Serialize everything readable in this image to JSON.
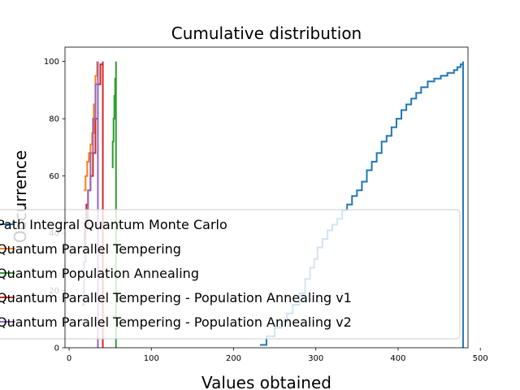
{
  "chart_data": {
    "type": "line",
    "drawstyle": "steps-post",
    "title": "Cumulative distribution",
    "xlabel": "Values obtained",
    "ylabel": "Occurrence",
    "xlim": [
      -5,
      485
    ],
    "ylim": [
      0,
      105
    ],
    "xticks": [
      0,
      100,
      200,
      300,
      400,
      500
    ],
    "yticks": [
      0,
      20,
      40,
      60,
      80,
      100
    ],
    "grid": false,
    "legend_position": "lower-left",
    "series": [
      {
        "name": "Path Integral Quantum Monte Carlo",
        "color": "#1f77b4",
        "x": [
          232,
          240,
          250,
          258,
          265,
          272,
          280,
          287,
          293,
          298,
          302,
          308,
          314,
          320,
          326,
          332,
          338,
          344,
          350,
          356,
          362,
          368,
          374,
          380,
          386,
          392,
          398,
          404,
          410,
          416,
          422,
          428,
          436,
          444,
          452,
          460,
          468,
          472,
          476,
          479,
          479
        ],
        "y": [
          1,
          4,
          7,
          9,
          12,
          15,
          19,
          24,
          28,
          31,
          35,
          38,
          41,
          43,
          45,
          48,
          50,
          53,
          55,
          58,
          62,
          65,
          68,
          72,
          74,
          77,
          80,
          83,
          85,
          87,
          89,
          91,
          93,
          94,
          95,
          96,
          97,
          98,
          99,
          100,
          0
        ]
      },
      {
        "name": "Quantum Parallel Tempering",
        "color": "#ff7f0e",
        "x": [
          18,
          20,
          22,
          24,
          26,
          28,
          30,
          32,
          34
        ],
        "y": [
          55,
          60,
          65,
          68,
          71,
          75,
          85,
          95,
          100
        ]
      },
      {
        "name": "Quantum Population Annealing",
        "color": "#2ca02c",
        "x": [
          52,
          53,
          54,
          55,
          56,
          57,
          57
        ],
        "y": [
          63,
          72,
          80,
          88,
          94,
          100,
          0
        ]
      },
      {
        "name": "Quantum Parallel Tempering - Population Annealing v1",
        "color": "#d62728",
        "x": [
          17,
          19,
          21,
          23,
          26,
          29,
          32,
          35,
          38,
          41,
          41
        ],
        "y": [
          35,
          42,
          50,
          55,
          60,
          68,
          80,
          92,
          99,
          100,
          0
        ]
      },
      {
        "name": "Quantum Parallel Tempering - Population Annealing v2",
        "color": "#9467bd",
        "x": [
          16,
          18,
          20,
          23,
          26,
          29,
          32,
          35,
          35
        ],
        "y": [
          15,
          30,
          42,
          55,
          68,
          80,
          92,
          100,
          0
        ]
      }
    ]
  }
}
